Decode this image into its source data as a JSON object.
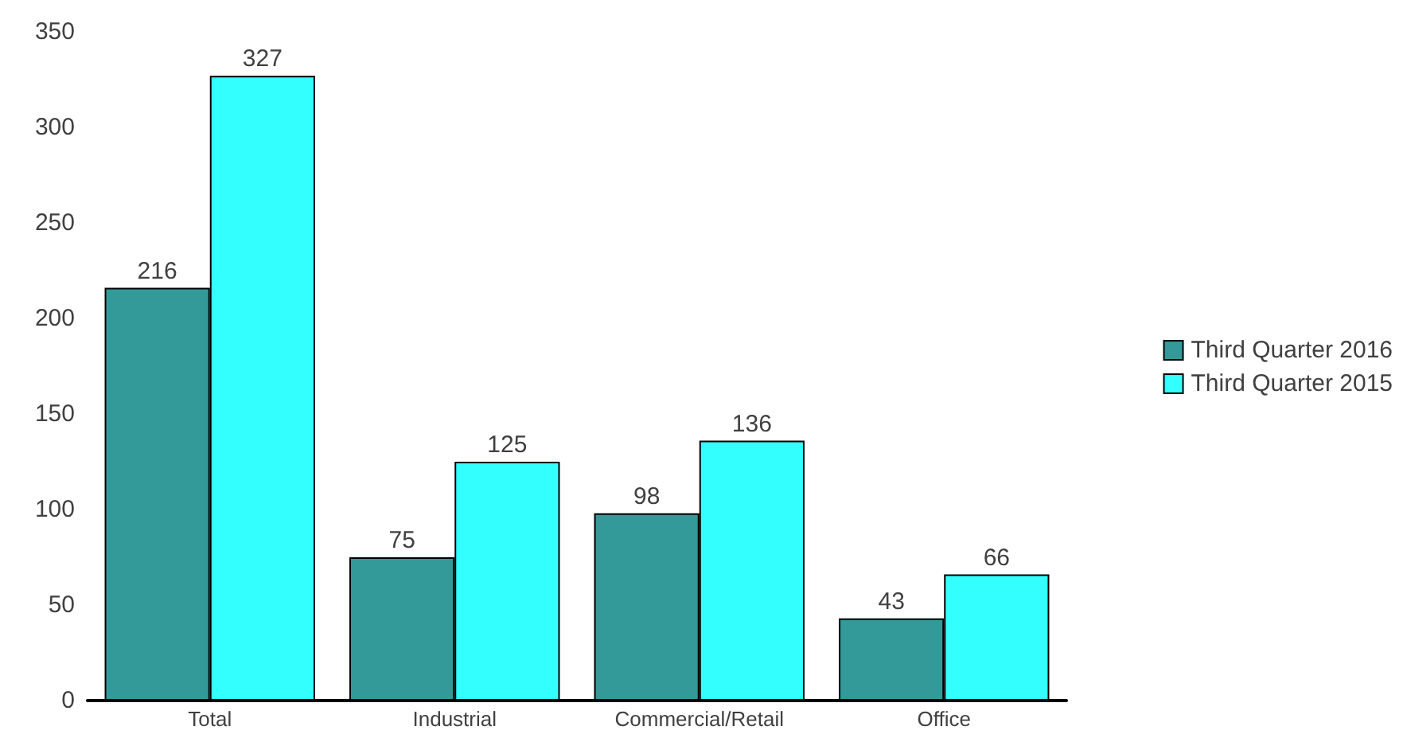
{
  "chart_data": {
    "type": "bar",
    "categories": [
      "Total",
      "Industrial",
      "Commercial/Retail",
      "Office"
    ],
    "series": [
      {
        "name": "Third Quarter 2016",
        "color": "#339999",
        "values": [
          216,
          75,
          98,
          43
        ]
      },
      {
        "name": "Third Quarter 2015",
        "color": "#33ffff",
        "values": [
          327,
          125,
          136,
          66
        ]
      }
    ],
    "ylim": [
      0,
      350
    ],
    "yticks": [
      0,
      50,
      100,
      150,
      200,
      250,
      300,
      350
    ],
    "grid": false,
    "legend": "right",
    "data_labels": true
  }
}
